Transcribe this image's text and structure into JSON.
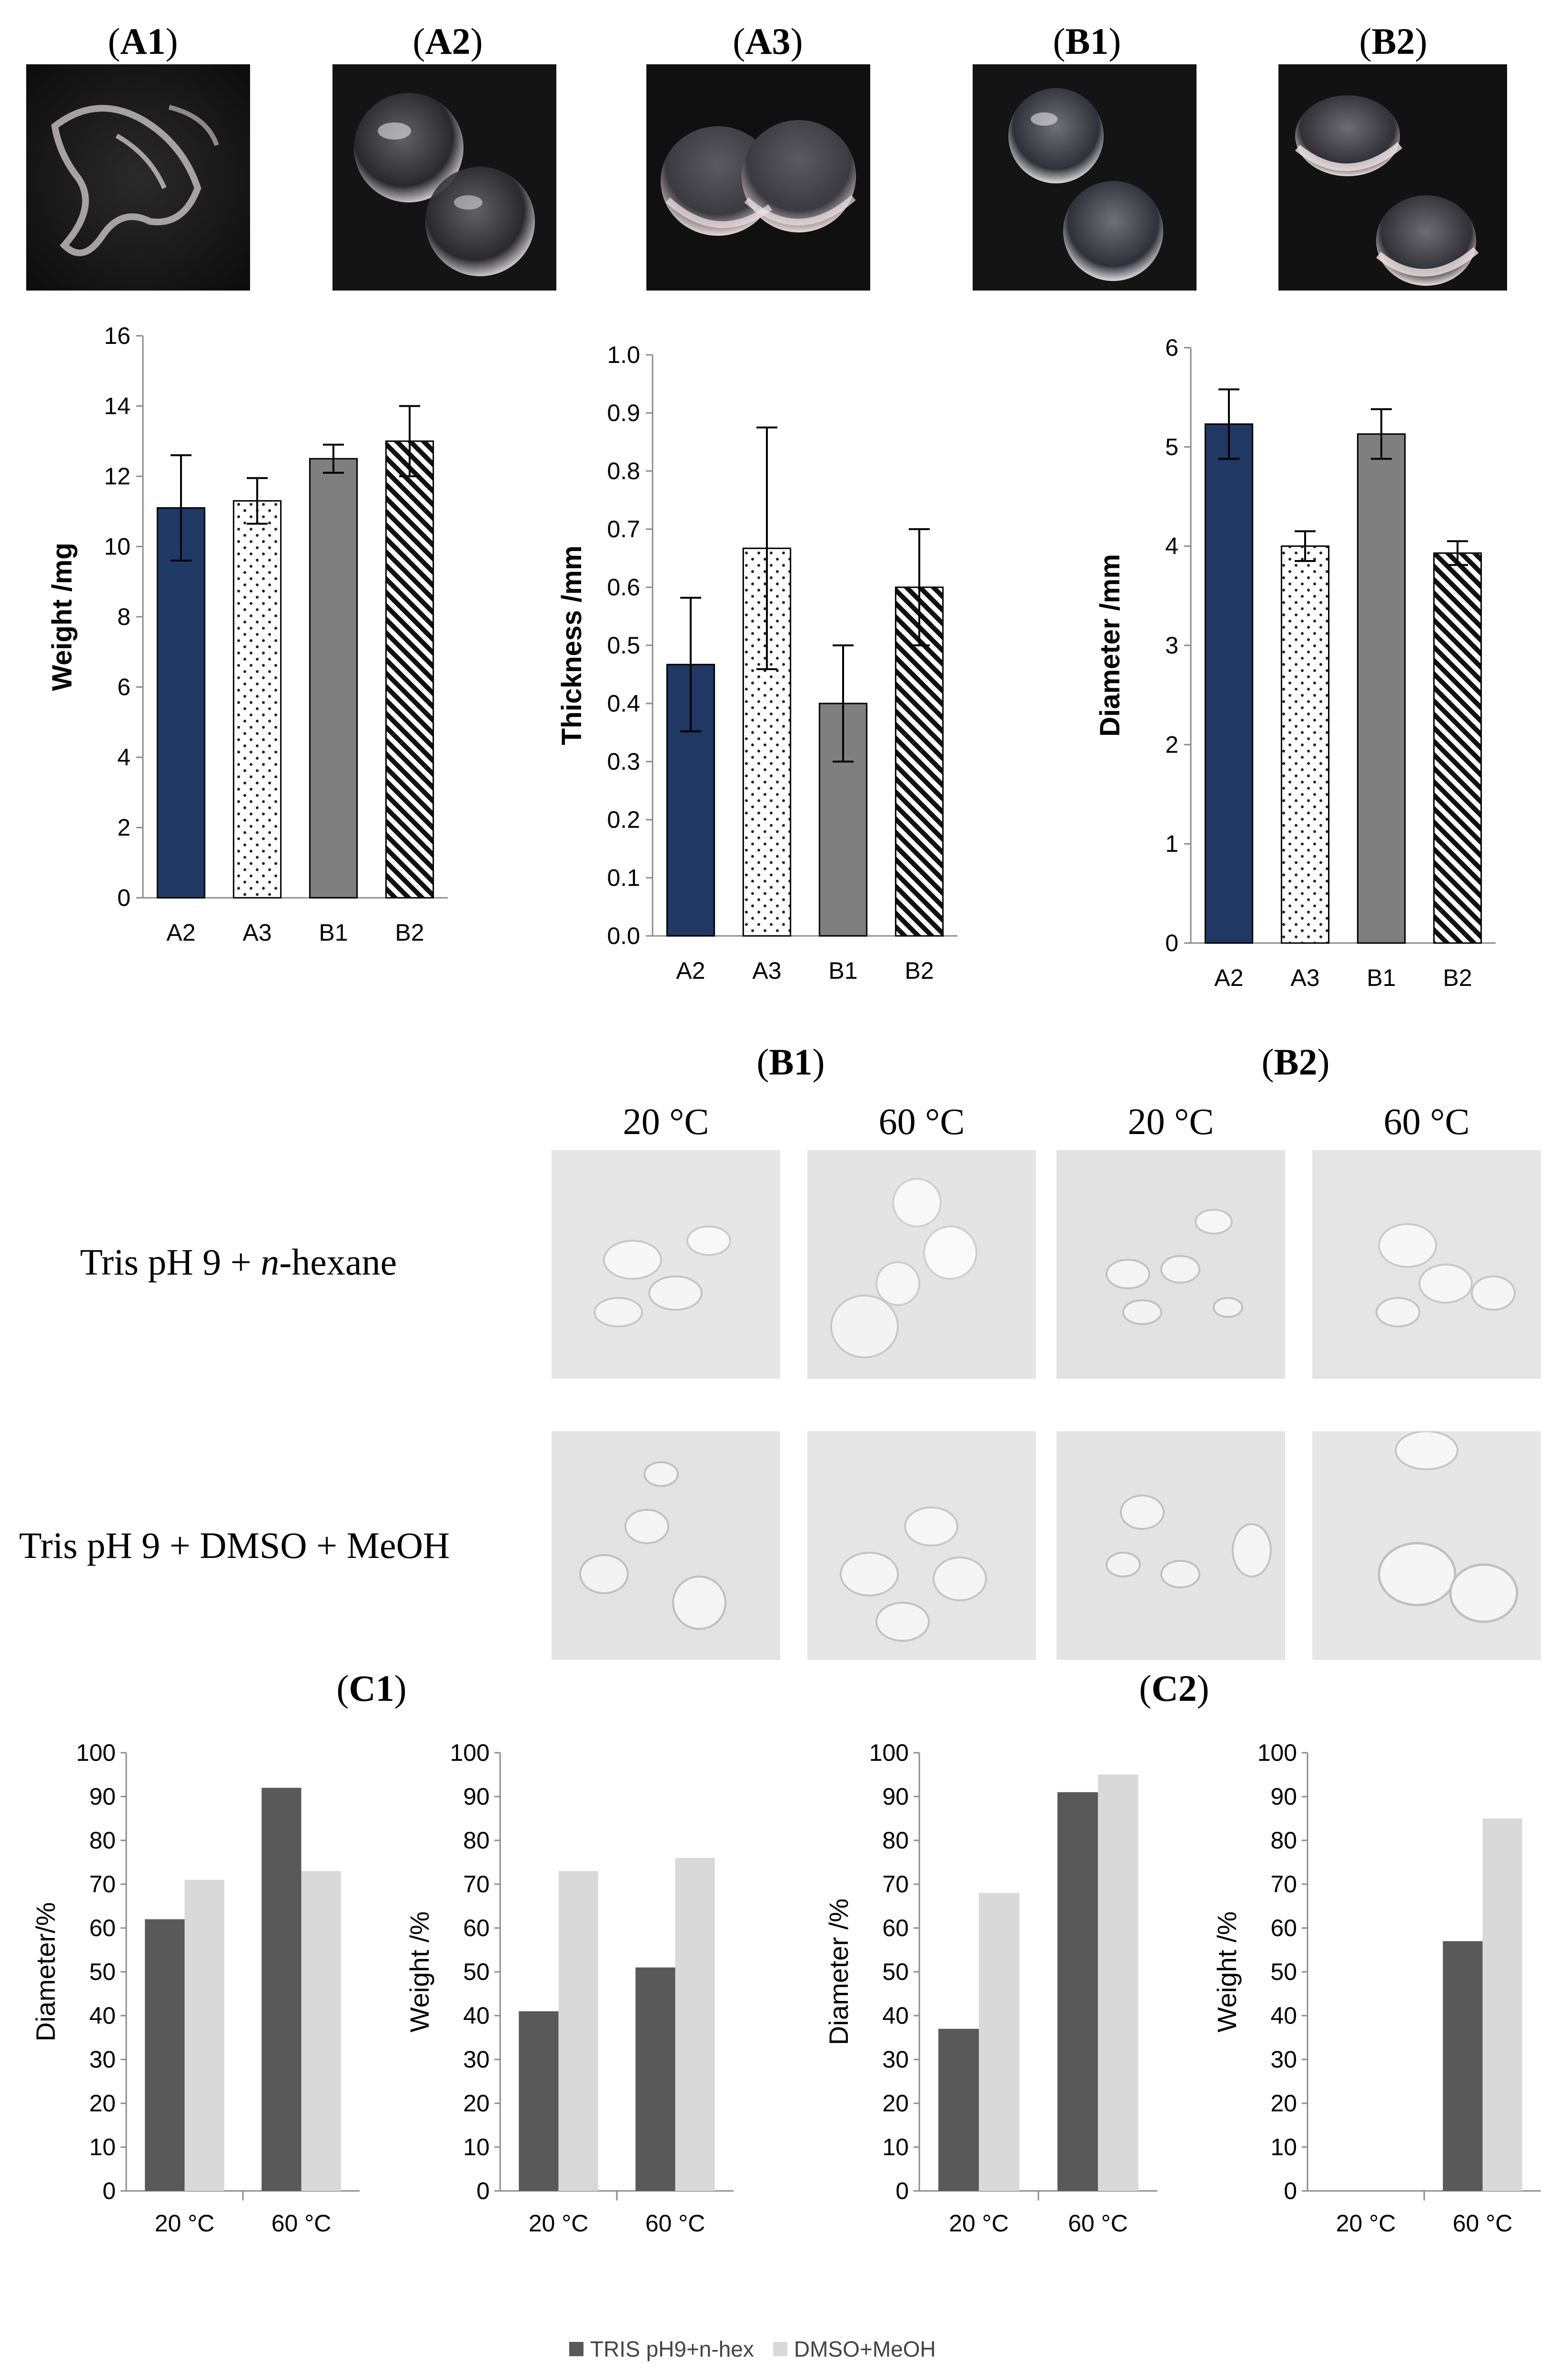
{
  "top_labels": [
    {
      "open": "(",
      "bold": "A1",
      "close": ")"
    },
    {
      "open": "(",
      "bold": "A2",
      "close": ")"
    },
    {
      "open": "(",
      "bold": "A3",
      "close": ")"
    },
    {
      "open": "(",
      "bold": "B1",
      "close": ")"
    },
    {
      "open": "(",
      "bold": "B2",
      "close": ")"
    }
  ],
  "mid_labels": [
    {
      "open": "(",
      "bold": "B1",
      "close": ")"
    },
    {
      "open": "(",
      "bold": "B2",
      "close": ")"
    }
  ],
  "temps": [
    "20 °C",
    "60 °C",
    "20 °C",
    "60 °C"
  ],
  "rows": [
    {
      "pre": "Tris pH 9 + ",
      "italic": "n",
      "post": "-hexane"
    },
    {
      "pre": "Tris pH 9 + DMSO + MeOH",
      "italic": "",
      "post": ""
    }
  ],
  "bottom_labels": [
    {
      "open": "(",
      "bold": "C1",
      "close": ")"
    },
    {
      "open": "(",
      "bold": "C2",
      "close": ")"
    }
  ],
  "colors": {
    "navy": "#1f3864",
    "gray": "#7f7f7f",
    "dark": "#595959",
    "light": "#d9d9d9"
  },
  "legend": [
    {
      "label": "TRIS pH9+n-hex",
      "color": "#595959"
    },
    {
      "label": "DMSO+MeOH",
      "color": "#d9d9d9"
    }
  ],
  "chart_data": [
    {
      "id": "weight",
      "type": "bar",
      "categories": [
        "A2",
        "A3",
        "B1",
        "B2"
      ],
      "values": [
        11.1,
        11.3,
        12.5,
        13.0
      ],
      "errors": [
        1.5,
        0.65,
        0.4,
        1.0
      ],
      "ylabel": "Weight /mg",
      "ylim": [
        0,
        16
      ],
      "yticks": [
        0,
        2,
        4,
        6,
        8,
        10,
        12,
        14,
        16
      ],
      "fills": [
        "navy",
        "dots",
        "gray",
        "diag"
      ]
    },
    {
      "id": "thickness",
      "type": "bar",
      "categories": [
        "A2",
        "A3",
        "B1",
        "B2"
      ],
      "values": [
        0.467,
        0.667,
        0.4,
        0.6
      ],
      "errors": [
        0.115,
        0.208,
        0.1,
        0.1
      ],
      "ylabel": "Thickness /mm",
      "ylim": [
        0,
        1.0
      ],
      "yticks": [
        "0.0",
        "0.1",
        "0.2",
        "0.3",
        "0.4",
        "0.5",
        "0.6",
        "0.7",
        "0.8",
        "0.9",
        "1.0"
      ],
      "fills": [
        "navy",
        "dots",
        "gray",
        "diag"
      ]
    },
    {
      "id": "diameter",
      "type": "bar",
      "categories": [
        "A2",
        "A3",
        "B1",
        "B2"
      ],
      "values": [
        5.23,
        4.0,
        5.13,
        3.93
      ],
      "errors": [
        0.35,
        0.15,
        0.25,
        0.12
      ],
      "ylabel": "Diameter /mm",
      "ylim": [
        0,
        6
      ],
      "yticks": [
        0,
        1,
        2,
        3,
        4,
        5,
        6
      ],
      "fills": [
        "navy",
        "dots",
        "gray",
        "diag"
      ]
    },
    {
      "id": "c1-diameter",
      "type": "bar",
      "categories": [
        "20 °C",
        "60 °C"
      ],
      "series": [
        {
          "name": "TRIS pH9+n-hex",
          "values": [
            62,
            92
          ]
        },
        {
          "name": "DMSO+MeOH",
          "values": [
            71,
            73
          ]
        }
      ],
      "ylabel": "Diameter/%",
      "ylim": [
        0,
        100
      ],
      "yticks": [
        0,
        10,
        20,
        30,
        40,
        50,
        60,
        70,
        80,
        90,
        100
      ]
    },
    {
      "id": "c1-weight",
      "type": "bar",
      "categories": [
        "20 °C",
        "60 °C"
      ],
      "series": [
        {
          "name": "TRIS pH9+n-hex",
          "values": [
            41,
            51
          ]
        },
        {
          "name": "DMSO+MeOH",
          "values": [
            73,
            76
          ]
        }
      ],
      "ylabel": "Weight /%",
      "ylim": [
        0,
        100
      ],
      "yticks": [
        0,
        10,
        20,
        30,
        40,
        50,
        60,
        70,
        80,
        90,
        100
      ]
    },
    {
      "id": "c2-diameter",
      "type": "bar",
      "categories": [
        "20 °C",
        "60 °C"
      ],
      "series": [
        {
          "name": "TRIS pH9+n-hex",
          "values": [
            37,
            91
          ]
        },
        {
          "name": "DMSO+MeOH",
          "values": [
            68,
            95
          ]
        }
      ],
      "ylabel": "Diameter /%",
      "ylim": [
        0,
        100
      ],
      "yticks": [
        0,
        10,
        20,
        30,
        40,
        50,
        60,
        70,
        80,
        90,
        100
      ]
    },
    {
      "id": "c2-weight",
      "type": "bar",
      "categories": [
        "20 °C",
        "60 °C"
      ],
      "series": [
        {
          "name": "TRIS pH9+n-hex",
          "values": [
            0,
            57
          ]
        },
        {
          "name": "DMSO+MeOH",
          "values": [
            0,
            85
          ]
        }
      ],
      "ylabel": "Weight /%",
      "ylim": [
        0,
        100
      ],
      "yticks": [
        0,
        10,
        20,
        30,
        40,
        50,
        60,
        70,
        80,
        90,
        100
      ]
    }
  ]
}
